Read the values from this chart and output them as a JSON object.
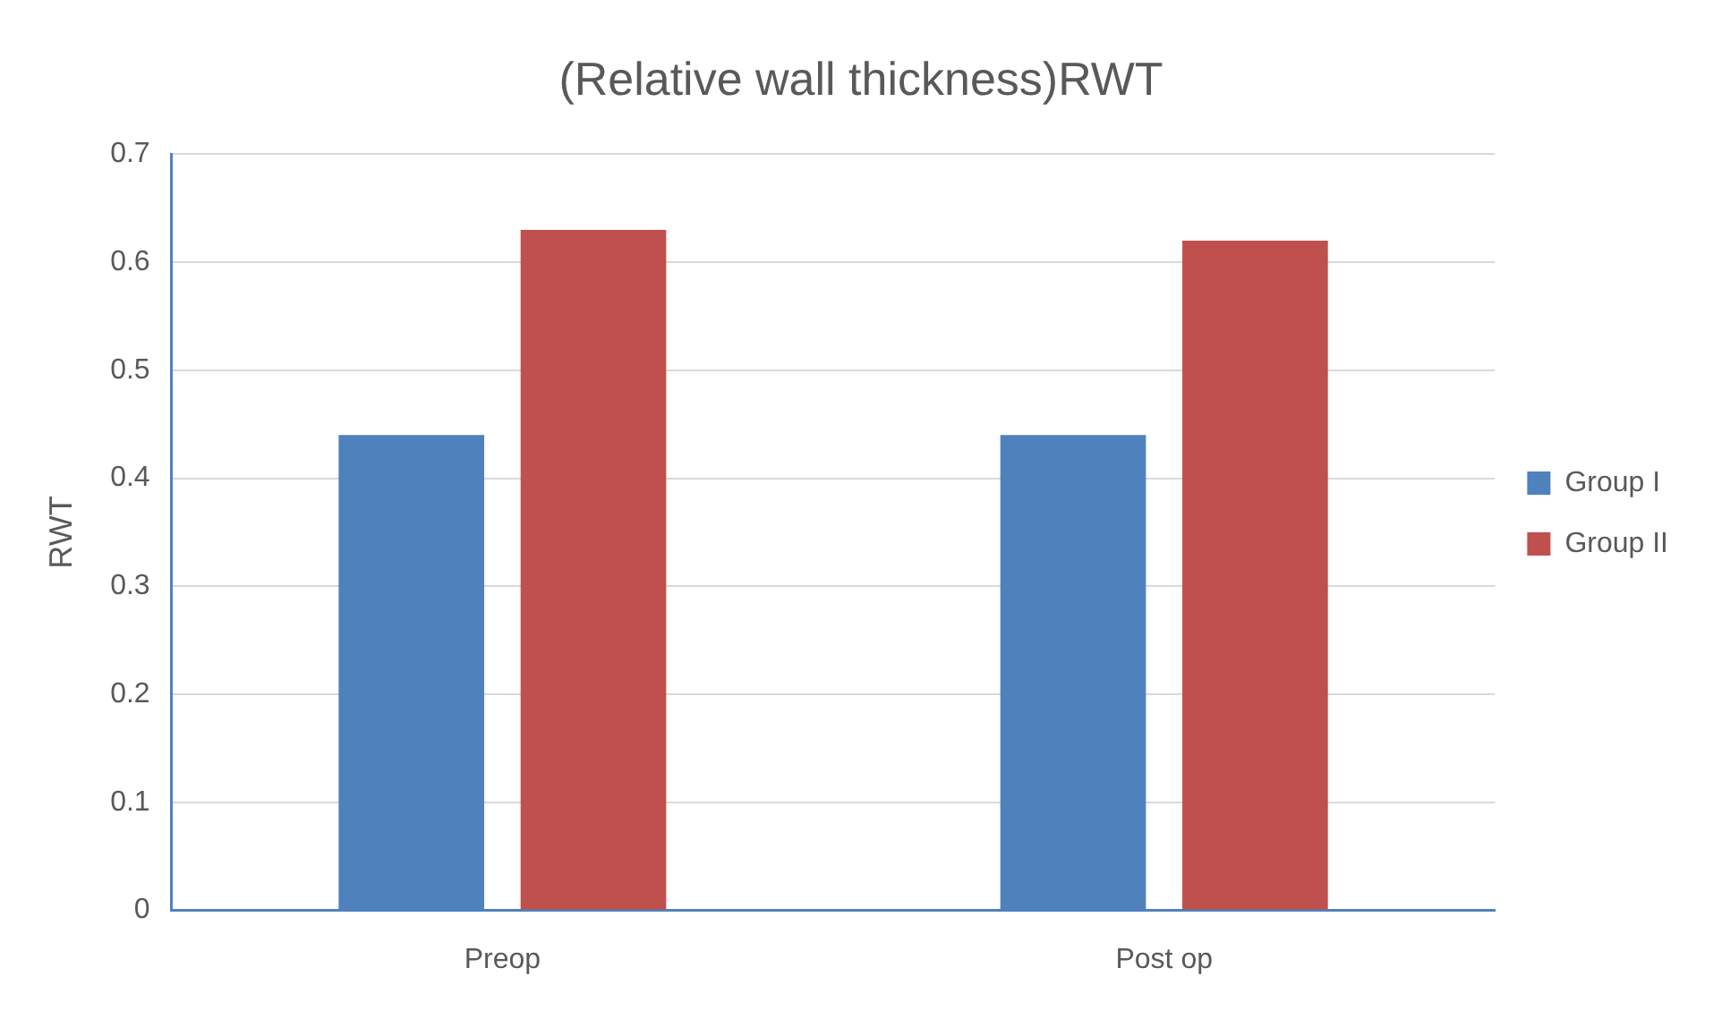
{
  "chart_data": {
    "type": "bar",
    "title": "(Relative wall thickness)RWT",
    "ylabel": "RWT",
    "categories": [
      "Preop",
      "Post op"
    ],
    "series": [
      {
        "name": "Group I",
        "color": "#4f81bd",
        "values": [
          0.44,
          0.44
        ]
      },
      {
        "name": "Group II",
        "color": "#c0504d",
        "values": [
          0.63,
          0.62
        ]
      }
    ],
    "ylim": [
      0,
      0.7
    ],
    "yticks": [
      0,
      0.1,
      0.2,
      0.3,
      0.4,
      0.5,
      0.6,
      0.7
    ],
    "grid": "y",
    "legend": "right"
  }
}
